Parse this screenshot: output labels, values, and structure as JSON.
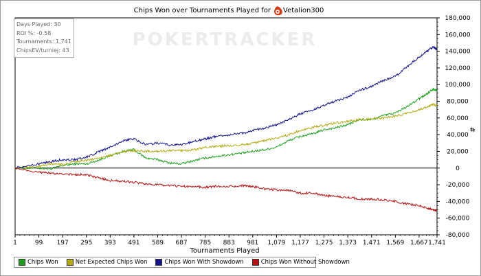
{
  "chart_data": {
    "type": "line",
    "title": "Chips Won over Tournaments Played for",
    "player": "Vetalion300",
    "watermark": "POKERTRACKER",
    "xlabel": "Tournaments Played",
    "ylabel": "",
    "right_axis_symbol": "#",
    "x_ticks": [
      1,
      99,
      197,
      295,
      393,
      491,
      589,
      687,
      785,
      883,
      981,
      1079,
      1177,
      1275,
      1373,
      1471,
      1569,
      1667,
      1741
    ],
    "x_tick_labels": [
      "1",
      "99",
      "197",
      "295",
      "393",
      "491",
      "589",
      "687",
      "785",
      "883",
      "981",
      "1,079",
      "1,177",
      "1,275",
      "1,373",
      "1,471",
      "1,569",
      "1,667",
      "1,741"
    ],
    "y_ticks": [
      180000,
      160000,
      140000,
      120000,
      100000,
      80000,
      60000,
      40000,
      20000,
      0,
      -20000,
      -40000,
      -60000,
      -80000
    ],
    "y_tick_labels": [
      "180,000",
      "160,000",
      "140,000",
      "120,000",
      "100,000",
      "80,000",
      "60,000",
      "40,000",
      "20,000",
      "0",
      "-20,000",
      "-40,000",
      "-60,000",
      "-80,000"
    ],
    "xlim": [
      1,
      1741
    ],
    "ylim": [
      -80000,
      180000
    ],
    "grid": false,
    "legend_position": "bottom-left",
    "stats": [
      "Days Played: 30",
      "ROI %: -0.58",
      "Tournaments: 1,741",
      "ChipsEV/turniej: 43"
    ],
    "series": [
      {
        "name": "Chips Won",
        "color": "#1ea01e",
        "x": [
          1,
          99,
          150,
          197,
          250,
          295,
          350,
          393,
          450,
          491,
          540,
          589,
          640,
          687,
          740,
          785,
          830,
          883,
          940,
          981,
          1030,
          1079,
          1130,
          1177,
          1230,
          1275,
          1320,
          1373,
          1420,
          1471,
          1520,
          1569,
          1620,
          1667,
          1700,
          1725,
          1741
        ],
        "values": [
          0,
          0,
          -1000,
          3000,
          5000,
          5000,
          10000,
          15000,
          20000,
          22000,
          12000,
          10000,
          6000,
          5000,
          9000,
          12000,
          14000,
          16000,
          18000,
          20000,
          22000,
          25000,
          33000,
          38000,
          41000,
          46000,
          48000,
          52000,
          58000,
          58000,
          63000,
          66000,
          74000,
          83000,
          89000,
          95000,
          93000
        ]
      },
      {
        "name": "Net Expected Chips Won",
        "color": "#b4aa14",
        "x": [
          1,
          99,
          150,
          197,
          250,
          295,
          350,
          393,
          450,
          491,
          540,
          589,
          640,
          687,
          740,
          785,
          830,
          883,
          940,
          981,
          1030,
          1079,
          1130,
          1177,
          1230,
          1275,
          1320,
          1373,
          1420,
          1471,
          1520,
          1569,
          1620,
          1667,
          1700,
          1725,
          1741
        ],
        "values": [
          0,
          2000,
          5000,
          4000,
          8000,
          9000,
          12000,
          15000,
          20000,
          21000,
          20000,
          20000,
          21000,
          21000,
          22000,
          25000,
          26000,
          27000,
          28000,
          30000,
          33000,
          36000,
          40000,
          45000,
          49000,
          51000,
          54000,
          56000,
          58000,
          59000,
          60000,
          62000,
          66000,
          70000,
          73000,
          76000,
          75000
        ]
      },
      {
        "name": "Chips Won With Showdown",
        "color": "#14148c",
        "x": [
          1,
          99,
          150,
          197,
          250,
          295,
          350,
          393,
          450,
          491,
          540,
          589,
          640,
          687,
          740,
          785,
          830,
          883,
          940,
          981,
          1030,
          1079,
          1130,
          1177,
          1230,
          1275,
          1320,
          1373,
          1420,
          1471,
          1520,
          1569,
          1620,
          1667,
          1700,
          1725,
          1741
        ],
        "values": [
          0,
          5000,
          8000,
          10000,
          10000,
          13000,
          20000,
          25000,
          33000,
          35000,
          28000,
          30000,
          28000,
          28000,
          32000,
          35000,
          38000,
          40000,
          42000,
          45000,
          48000,
          52000,
          58000,
          65000,
          70000,
          75000,
          80000,
          85000,
          93000,
          98000,
          105000,
          110000,
          122000,
          133000,
          140000,
          145000,
          142000
        ]
      },
      {
        "name": "Chips Won Without Showdown",
        "color": "#b41414",
        "x": [
          1,
          99,
          150,
          197,
          250,
          295,
          350,
          393,
          450,
          491,
          540,
          589,
          640,
          687,
          740,
          785,
          830,
          883,
          940,
          981,
          1030,
          1079,
          1130,
          1177,
          1230,
          1275,
          1320,
          1373,
          1420,
          1471,
          1520,
          1569,
          1620,
          1667,
          1700,
          1725,
          1741
        ],
        "values": [
          0,
          -5000,
          -6000,
          -7000,
          -8000,
          -8000,
          -12000,
          -15000,
          -16000,
          -17000,
          -19000,
          -20000,
          -21000,
          -22000,
          -22000,
          -23000,
          -22000,
          -22000,
          -21000,
          -22000,
          -25000,
          -26000,
          -27000,
          -30000,
          -30000,
          -33000,
          -34000,
          -35000,
          -37000,
          -37000,
          -38000,
          -40000,
          -43000,
          -45000,
          -48000,
          -50000,
          -51000
        ]
      }
    ]
  }
}
